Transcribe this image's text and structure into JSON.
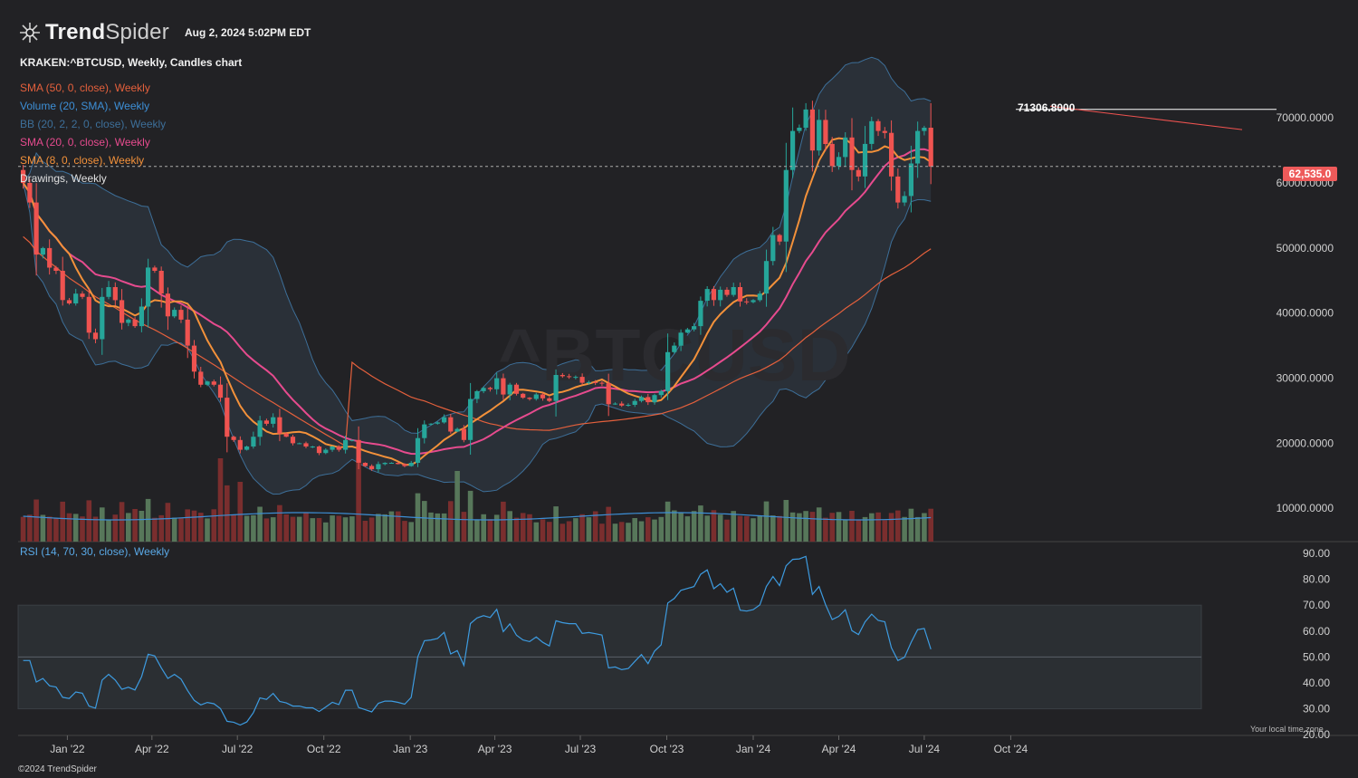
{
  "header": {
    "logo_bold": "Trend",
    "logo_light": "Spider",
    "datetime": "Aug 2, 2024 5:02PM EDT",
    "symbol_line": "KRAKEN:^BTCUSD, Weekly, Candles chart",
    "watermark": "^BTCUSD"
  },
  "legend": [
    {
      "label": "SMA (50, 0, close), Weekly",
      "color": "#e4603c"
    },
    {
      "label": "Volume (20, SMA), Weekly",
      "color": "#3d8fd6"
    },
    {
      "label": "BB (20, 2, 2, 0, close), Weekly",
      "color": "#3d6f99"
    },
    {
      "label": "SMA (20, 0, close), Weekly",
      "color": "#e64b8e"
    },
    {
      "label": "SMA (8, 0, close), Weekly",
      "color": "#f3913a"
    },
    {
      "label": "Drawings, Weekly",
      "color": "#e0e0e0"
    }
  ],
  "rsi_label": "RSI (14, 70, 30, close), Weekly",
  "footer": {
    "copyright": "©2024 TrendSpider",
    "timezone_note": "Your local time zone"
  },
  "annotations": {
    "high_label": "71306.8000",
    "last_price": "62,535.0"
  },
  "colors": {
    "up": "#26a69a",
    "down": "#ef5350",
    "sma8": "#f3913a",
    "sma20": "#e64b8e",
    "sma50": "#e4603c",
    "bb": "#3d6f99",
    "rsi": "#3d9be0",
    "background": "#222225"
  },
  "chart_data": [
    {
      "type": "candlestick",
      "title": "KRAKEN:^BTCUSD, Weekly, Candles chart",
      "y_ticks": [
        "70000.0000",
        "60000.0000",
        "50000.0000",
        "40000.0000",
        "30000.0000",
        "20000.0000",
        "10000.0000"
      ],
      "x_ticks": [
        "Jan '22",
        "Apr '22",
        "Jul '22",
        "Oct '22",
        "Jan '23",
        "Apr '23",
        "Jul '23",
        "Oct '23",
        "Jan '24",
        "Apr '24",
        "Jul '24",
        "Oct '24"
      ],
      "date_start": "2021-11-15",
      "closes": [
        60000,
        57000,
        49000,
        50000,
        47000,
        46500,
        42000,
        41500,
        43000,
        42500,
        37000,
        36000,
        42500,
        44000,
        42000,
        38500,
        39000,
        38000,
        41000,
        47000,
        46500,
        43000,
        39500,
        40500,
        39000,
        35000,
        31000,
        29000,
        29500,
        29000,
        27000,
        21000,
        20500,
        19000,
        19500,
        21000,
        23500,
        23000,
        24000,
        21500,
        21000,
        20000,
        20000,
        19500,
        19500,
        18500,
        19000,
        19500,
        19000,
        20500,
        20500,
        17000,
        16500,
        16000,
        16800,
        17000,
        17000,
        16800,
        16500,
        17000,
        20800,
        22900,
        23000,
        23200,
        24000,
        21800,
        22200,
        20500,
        26800,
        28000,
        28500,
        28300,
        30000,
        27500,
        29000,
        27600,
        27000,
        26800,
        27500,
        26900,
        26500,
        30500,
        30300,
        30200,
        30200,
        29300,
        29400,
        29300,
        29200,
        26000,
        26100,
        25800,
        25900,
        26500,
        27100,
        26300,
        27400,
        28000,
        34000,
        35000,
        37000,
        37500,
        38000,
        41900,
        43700,
        42000,
        43600,
        42800,
        44000,
        41800,
        41700,
        42000,
        43000,
        48000,
        52000,
        51000,
        62000,
        68000,
        68500,
        71300,
        65000,
        69700,
        66000,
        62600,
        64000,
        67000,
        62000,
        61000,
        66000,
        69500,
        68000,
        67700,
        61000,
        57000,
        58000,
        63000,
        68000,
        68500,
        62535
      ],
      "volume": {
        "max": 1.0,
        "color_up": "#57775a",
        "color_down": "#7a2e2e"
      },
      "indicators": [
        "SMA (8)",
        "SMA (20)",
        "SMA (50)",
        "BB (20, 2)"
      ],
      "high_annotation": 71306.8,
      "last_price": 62535.0
    },
    {
      "type": "line",
      "title": "RSI (14, 70, 30, close), Weekly",
      "y_ticks": [
        "90.00",
        "80.00",
        "70.00",
        "60.00",
        "50.00",
        "40.00",
        "30.00",
        "20.00"
      ],
      "upper_band": 70,
      "lower_band": 30,
      "mid_line": 50
    }
  ]
}
